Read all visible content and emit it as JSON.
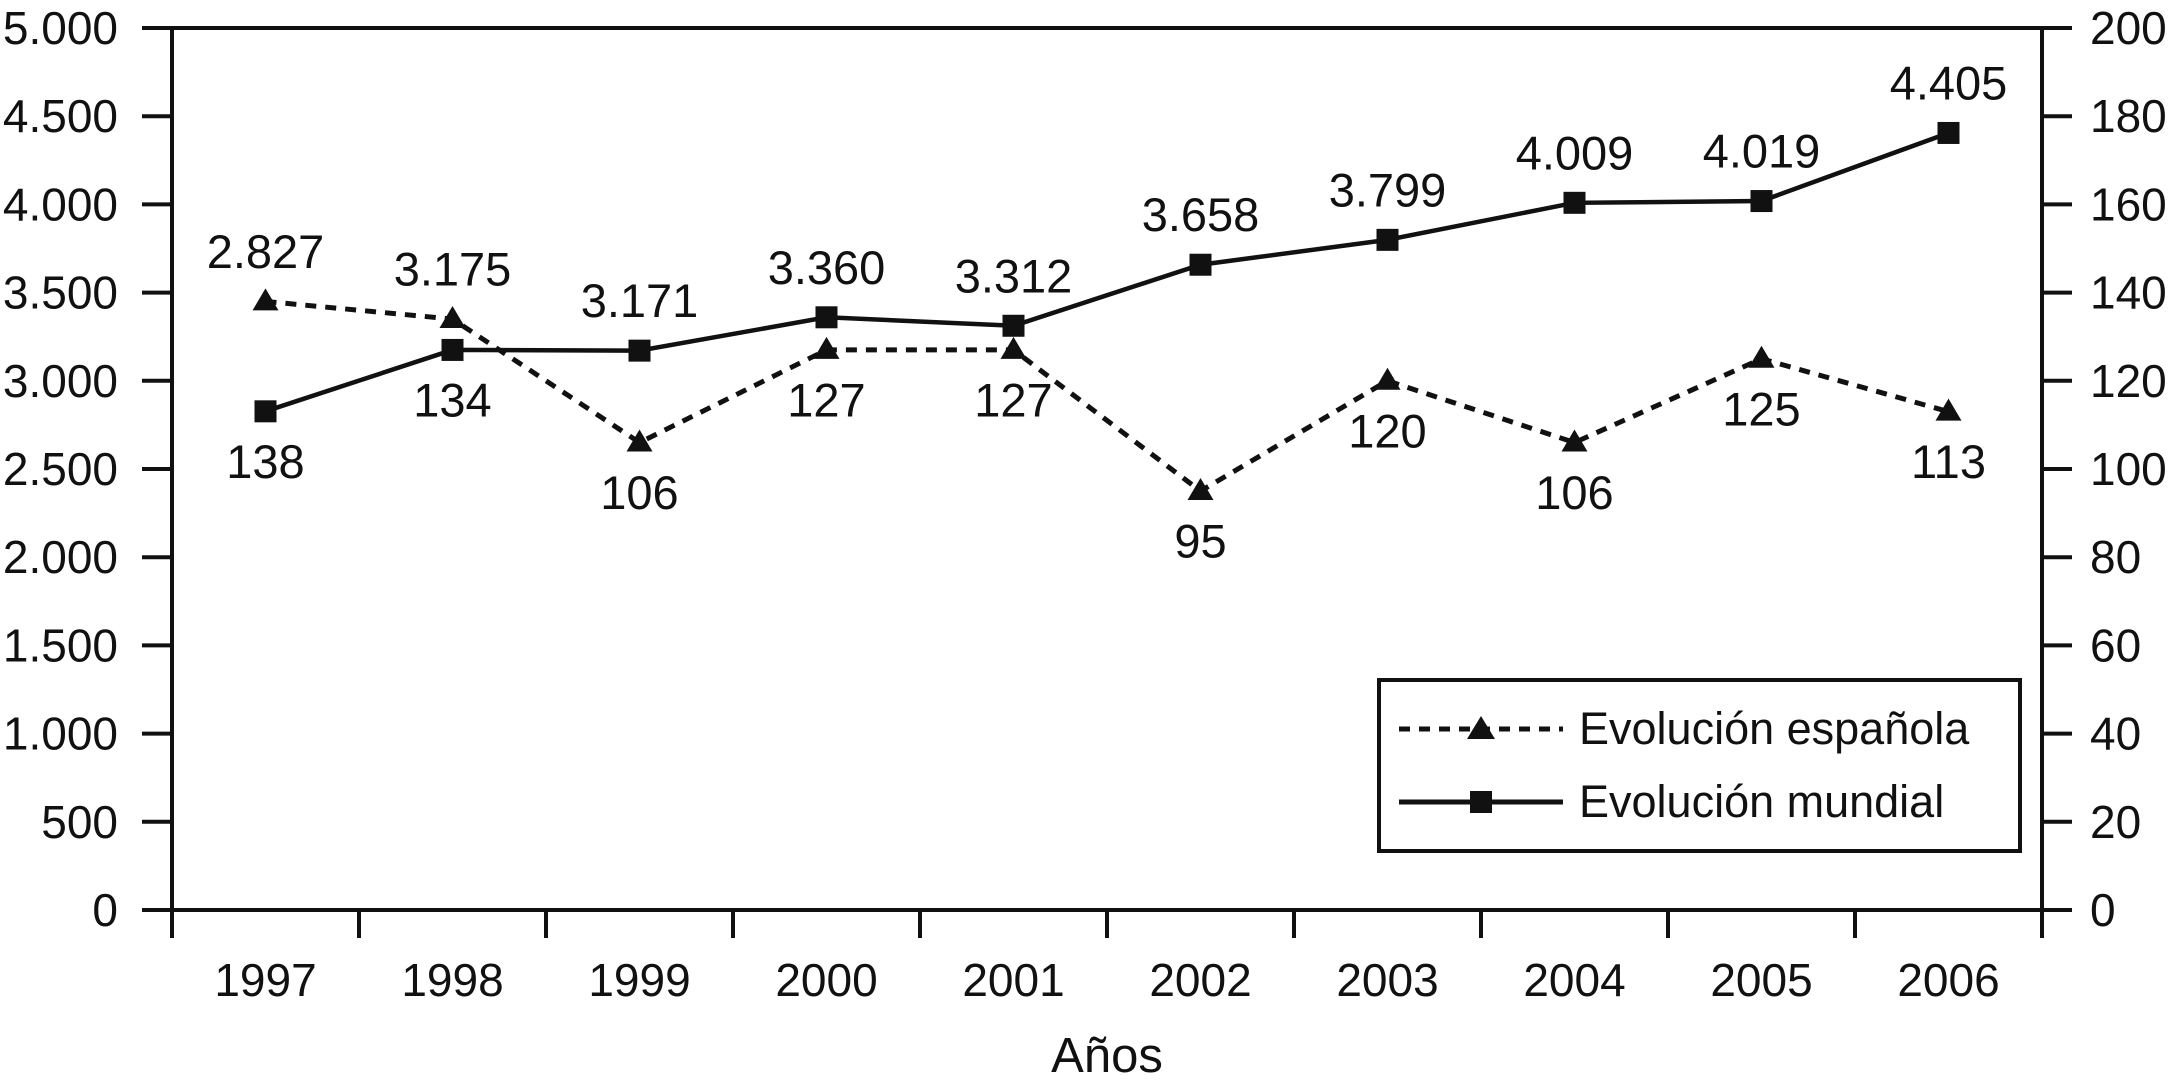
{
  "chart_data": {
    "type": "line",
    "categories": [
      "1997",
      "1998",
      "1999",
      "2000",
      "2001",
      "2002",
      "2003",
      "2004",
      "2005",
      "2006"
    ],
    "series": [
      {
        "name": "Evolución española",
        "axis": "right",
        "marker": "triangle",
        "line_style": "dashed",
        "label_placement": "below",
        "values": [
          138,
          134,
          106,
          127,
          127,
          95,
          120,
          106,
          125,
          113
        ],
        "labels": [
          "138",
          "134",
          "106",
          "127",
          "127",
          "95",
          "120",
          "106",
          "125",
          "113"
        ]
      },
      {
        "name": "Evolución mundial",
        "axis": "left",
        "marker": "square",
        "line_style": "solid",
        "label_placement": "above",
        "values": [
          2827,
          3175,
          3171,
          3360,
          3312,
          3658,
          3799,
          4009,
          4019,
          4405
        ],
        "labels": [
          "2.827",
          "3.175",
          "3.171",
          "3.360",
          "3.312",
          "3.658",
          "3.799",
          "4.009",
          "4.019",
          "4.405"
        ]
      }
    ],
    "left_axis": {
      "min": 0,
      "max": 5000,
      "tick_labels": [
        "5.000",
        "4.500",
        "4.000",
        "3.500",
        "3.000",
        "2.500",
        "2.000",
        "1.500",
        "1.000",
        "500",
        "0"
      ]
    },
    "right_axis": {
      "min": 0,
      "max": 200,
      "tick_labels": [
        "200",
        "180",
        "160",
        "140",
        "120",
        "100",
        "80",
        "60",
        "40",
        "20",
        "0"
      ]
    },
    "xlabel": "Años",
    "legend_position": "bottom-right",
    "grid": false,
    "colors": {
      "foreground": "#111111",
      "background": "#ffffff"
    }
  }
}
